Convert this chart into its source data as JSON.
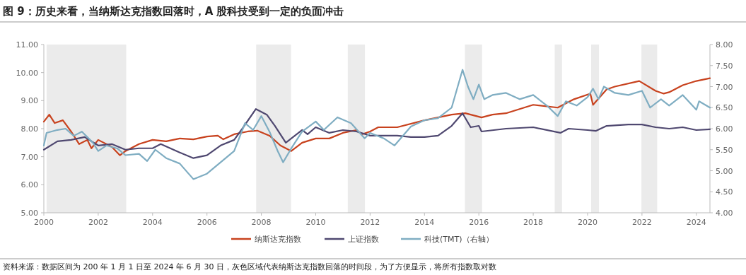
{
  "chart_data": {
    "type": "line",
    "title": "图 9：历史来看，当纳斯达克指数回落时，A 股科技受到一定的负面冲击",
    "annotations": [
      "资料来源：数据区间为 200 年 1 月 1 日至 2024 年 6 月 30 日，灰色区域代表纳斯达克指数回落的时间段，为了方便显示，将所有指数取对数"
    ],
    "xlim": [
      2000,
      2024.5
    ],
    "xticks": [
      2000,
      2002,
      2004,
      2006,
      2008,
      2010,
      2012,
      2014,
      2016,
      2018,
      2020,
      2022,
      2024
    ],
    "ylim": [
      5,
      11
    ],
    "yticks": [
      {
        "value": 5,
        "label": "5.00"
      },
      {
        "value": 6,
        "label": "6.00"
      },
      {
        "value": 7,
        "label": "7.00"
      },
      {
        "value": 8,
        "label": "8.00"
      },
      {
        "value": 9,
        "label": "9.00"
      },
      {
        "value": 10,
        "label": "10.00"
      },
      {
        "value": 11,
        "label": "11.00"
      }
    ],
    "y2lim": [
      4,
      8
    ],
    "y2ticks": [
      {
        "value": 4,
        "label": "4.00"
      },
      {
        "value": 4.5,
        "label": "4.50"
      },
      {
        "value": 5,
        "label": "5.00"
      },
      {
        "value": 5.5,
        "label": "5.50"
      },
      {
        "value": 6,
        "label": "6.00"
      },
      {
        "value": 6.5,
        "label": "6.50"
      },
      {
        "value": 7,
        "label": "7.00"
      },
      {
        "value": 7.5,
        "label": "7.50"
      },
      {
        "value": 8,
        "label": "8.00"
      }
    ],
    "bands": [
      {
        "axis": "x",
        "from": 2000.1,
        "to": 2003.03,
        "color": "#ebebeb"
      },
      {
        "axis": "x",
        "from": 2007.81,
        "to": 2009.09,
        "color": "#ebebeb"
      },
      {
        "axis": "x",
        "from": 2011.18,
        "to": 2011.81,
        "color": "#ebebeb"
      },
      {
        "axis": "x",
        "from": 2015.49,
        "to": 2016.12,
        "color": "#ebebeb"
      },
      {
        "axis": "x",
        "from": 2018.79,
        "to": 2019.06,
        "color": "#ebebeb"
      },
      {
        "axis": "x",
        "from": 2020.13,
        "to": 2020.42,
        "color": "#ebebeb"
      },
      {
        "axis": "x",
        "from": 2021.98,
        "to": 2022.56,
        "color": "#ebebeb"
      }
    ],
    "legend": "bottom",
    "grid": false,
    "series": [
      {
        "name": "纳斯达克指数",
        "color": "#c8421e",
        "x": [
          2000,
          2000.2,
          2000.4,
          2000.7,
          2001,
          2001.3,
          2001.6,
          2001.75,
          2002,
          2002.5,
          2002.8,
          2003,
          2003.5,
          2004,
          2004.5,
          2005,
          2005.5,
          2006,
          2006.4,
          2006.6,
          2007,
          2007.5,
          2007.85,
          2008.3,
          2008.7,
          2009.1,
          2009.5,
          2010,
          2010.5,
          2011,
          2011.5,
          2011.7,
          2012,
          2012.3,
          2013,
          2014,
          2015,
          2015.5,
          2016.1,
          2016.5,
          2017,
          2018,
          2018.9,
          2019.5,
          2020.1,
          2020.2,
          2020.7,
          2021,
          2021.9,
          2022.5,
          2022.8,
          2023,
          2023.5,
          2024,
          2024.5
        ],
        "values": [
          8.25,
          8.5,
          8.2,
          8.3,
          7.9,
          7.45,
          7.6,
          7.3,
          7.6,
          7.35,
          7.05,
          7.2,
          7.45,
          7.6,
          7.55,
          7.65,
          7.62,
          7.72,
          7.75,
          7.62,
          7.8,
          7.9,
          7.93,
          7.75,
          7.4,
          7.2,
          7.5,
          7.65,
          7.65,
          7.85,
          7.95,
          7.8,
          7.9,
          8.05,
          8.05,
          8.3,
          8.5,
          8.55,
          8.4,
          8.5,
          8.55,
          8.85,
          8.75,
          9.05,
          9.25,
          8.85,
          9.4,
          9.5,
          9.7,
          9.35,
          9.25,
          9.3,
          9.55,
          9.7,
          9.8
        ]
      },
      {
        "name": "上证指数",
        "color": "#4f4870",
        "x": [
          2000,
          2000.5,
          2001,
          2001.5,
          2002,
          2002.5,
          2003,
          2003.5,
          2004,
          2004.3,
          2005,
          2005.5,
          2006,
          2006.5,
          2007,
          2007.3,
          2007.8,
          2008.2,
          2008.5,
          2008.9,
          2009.5,
          2009.7,
          2010,
          2010.5,
          2011,
          2011.5,
          2012,
          2012.7,
          2013,
          2013.5,
          2014,
          2014.5,
          2015,
          2015.4,
          2015.7,
          2016,
          2016.1,
          2017,
          2018,
          2019,
          2019.3,
          2020,
          2020.3,
          2020.7,
          2021.5,
          2022,
          2022.5,
          2023,
          2023.5,
          2024,
          2024.5
        ],
        "values": [
          7.25,
          7.55,
          7.6,
          7.7,
          7.4,
          7.45,
          7.25,
          7.3,
          7.3,
          7.45,
          7.15,
          6.95,
          7.05,
          7.4,
          7.6,
          8,
          8.7,
          8.5,
          8.1,
          7.5,
          7.95,
          7.8,
          8.05,
          7.85,
          7.95,
          7.9,
          7.75,
          7.75,
          7.75,
          7.7,
          7.7,
          7.75,
          8.1,
          8.55,
          8.05,
          8.1,
          7.9,
          8,
          8.05,
          7.85,
          8,
          7.95,
          7.92,
          8.1,
          8.15,
          8.15,
          8.05,
          8,
          8.05,
          7.95,
          7.98
        ]
      },
      {
        "name": "科技(TMT)（右轴）",
        "color": "#7fadc2",
        "axis": "y2",
        "x": [
          2000,
          2000.1,
          2000.5,
          2000.8,
          2001.1,
          2001.4,
          2001.8,
          2002,
          2002.3,
          2002.7,
          2003,
          2003.5,
          2003.8,
          2004.1,
          2004.5,
          2005,
          2005.5,
          2006,
          2006.5,
          2007,
          2007.4,
          2007.7,
          2008,
          2008.3,
          2008.6,
          2008.8,
          2009.1,
          2009.5,
          2010,
          2010.3,
          2010.8,
          2011.3,
          2011.8,
          2012,
          2012.5,
          2012.9,
          2013.5,
          2014,
          2014.5,
          2015,
          2015.4,
          2015.6,
          2015.8,
          2016,
          2016.2,
          2016.5,
          2017,
          2017.5,
          2018,
          2018.5,
          2018.9,
          2019.2,
          2019.6,
          2020,
          2020.2,
          2020.4,
          2020.6,
          2021,
          2021.5,
          2022,
          2022.3,
          2022.7,
          2023,
          2023.5,
          2024,
          2024.1,
          2024.5
        ],
        "values": [
          5.6,
          5.9,
          5.97,
          6,
          5.83,
          5.93,
          5.67,
          5.47,
          5.6,
          5.53,
          5.37,
          5.4,
          5.23,
          5.5,
          5.3,
          5.17,
          4.8,
          4.93,
          5.2,
          5.47,
          6.13,
          5.97,
          6.3,
          5.93,
          5.47,
          5.2,
          5.53,
          5.93,
          6.17,
          5.97,
          6.27,
          6.13,
          5.77,
          5.9,
          5.77,
          5.6,
          6.05,
          6.2,
          6.25,
          6.5,
          7.4,
          7,
          6.7,
          7.05,
          6.7,
          6.8,
          6.85,
          6.7,
          6.8,
          6.55,
          6.3,
          6.65,
          6.55,
          6.75,
          6.95,
          6.7,
          7,
          6.85,
          6.8,
          6.9,
          6.5,
          6.7,
          6.55,
          6.8,
          6.45,
          6.65,
          6.5
        ]
      }
    ]
  }
}
